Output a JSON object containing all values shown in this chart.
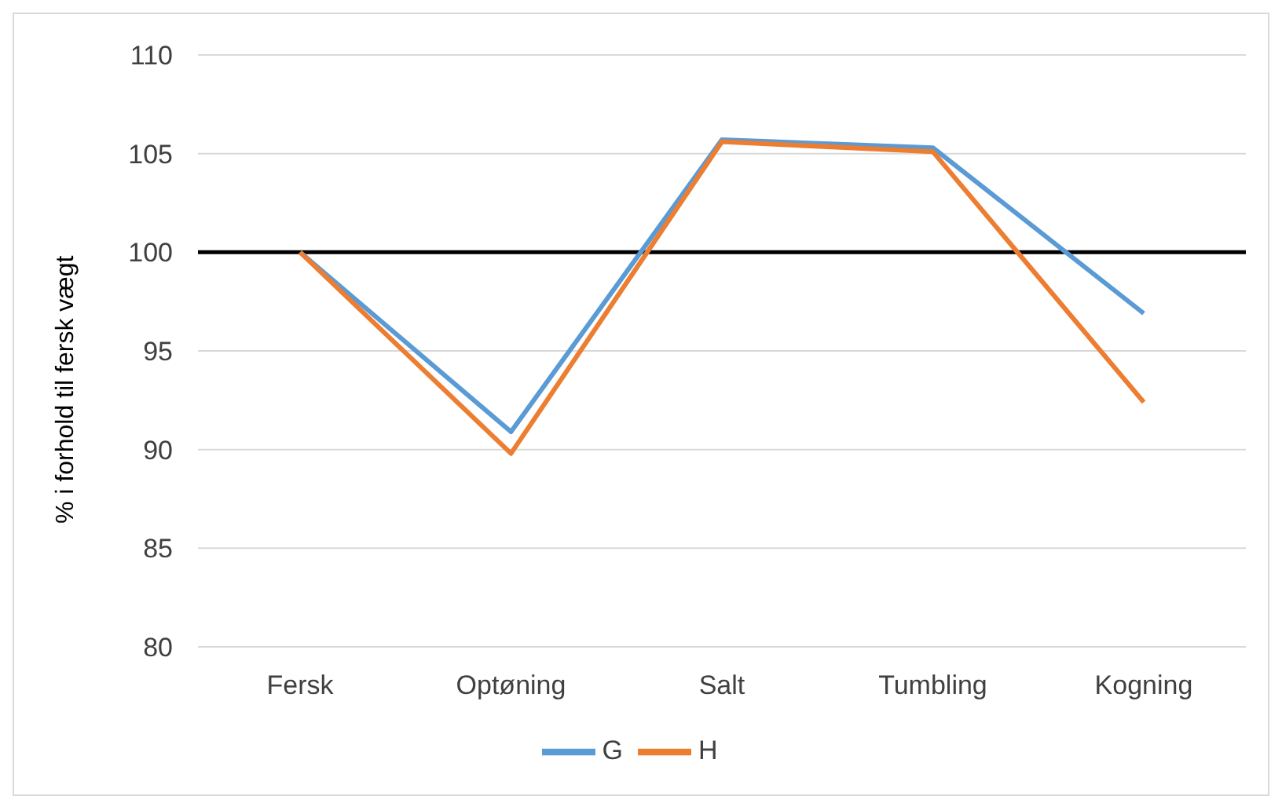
{
  "chart_data": {
    "type": "line",
    "ylabel": "% i forhold til fersk vægt",
    "categories": [
      "Fersk",
      "Optøning",
      "Salt",
      "Tumbling",
      "Kogning"
    ],
    "series": [
      {
        "name": "G",
        "color": "#5b9bd5",
        "values": [
          100,
          90.9,
          105.7,
          105.3,
          96.9
        ]
      },
      {
        "name": "H",
        "color": "#ed7d31",
        "values": [
          100,
          89.8,
          105.6,
          105.1,
          92.4
        ]
      }
    ],
    "ylim": [
      80,
      110
    ],
    "yticks": [
      80,
      85,
      90,
      95,
      100,
      105,
      110
    ],
    "grid": "y",
    "legend": "bottom",
    "marker": "none",
    "line_style": "solid",
    "ref_lines": [
      {
        "axis": "y",
        "value": 100,
        "color": "#000000"
      }
    ]
  }
}
